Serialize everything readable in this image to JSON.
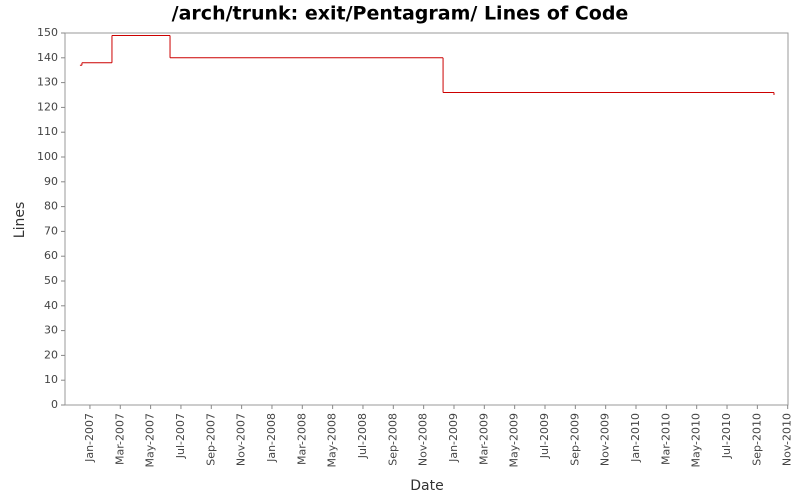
{
  "chart_data": {
    "type": "line",
    "step": "post",
    "title": "/arch/trunk: exit/Pentagram/ Lines of Code",
    "x_label": "Date",
    "y_label": "Lines",
    "x": [
      2006.945,
      2006.956,
      2007.121,
      2007.44,
      2008.94,
      2010.75,
      2010.758
    ],
    "series": [
      {
        "name": "Lines",
        "color": "#cc0000",
        "values": [
          137,
          138,
          149,
          140,
          126,
          126,
          125
        ]
      }
    ],
    "xlim": [
      2006.863,
      2010.835
    ],
    "xticks": [
      {
        "value": 2007.0,
        "label": "Jan-2007"
      },
      {
        "value": 2007.1667,
        "label": "Mar-2007"
      },
      {
        "value": 2007.3333,
        "label": "May-2007"
      },
      {
        "value": 2007.5,
        "label": "Jul-2007"
      },
      {
        "value": 2007.6667,
        "label": "Sep-2007"
      },
      {
        "value": 2007.8333,
        "label": "Nov-2007"
      },
      {
        "value": 2008.0,
        "label": "Jan-2008"
      },
      {
        "value": 2008.1667,
        "label": "Mar-2008"
      },
      {
        "value": 2008.3333,
        "label": "May-2008"
      },
      {
        "value": 2008.5,
        "label": "Jul-2008"
      },
      {
        "value": 2008.6667,
        "label": "Sep-2008"
      },
      {
        "value": 2008.8333,
        "label": "Nov-2008"
      },
      {
        "value": 2009.0,
        "label": "Jan-2009"
      },
      {
        "value": 2009.1667,
        "label": "Mar-2009"
      },
      {
        "value": 2009.3333,
        "label": "May-2009"
      },
      {
        "value": 2009.5,
        "label": "Jul-2009"
      },
      {
        "value": 2009.6667,
        "label": "Sep-2009"
      },
      {
        "value": 2009.8333,
        "label": "Nov-2009"
      },
      {
        "value": 2010.0,
        "label": "Jan-2010"
      },
      {
        "value": 2010.1667,
        "label": "Mar-2010"
      },
      {
        "value": 2010.3333,
        "label": "May-2010"
      },
      {
        "value": 2010.5,
        "label": "Jul-2010"
      },
      {
        "value": 2010.6667,
        "label": "Sep-2010"
      },
      {
        "value": 2010.8333,
        "label": "Nov-2010"
      }
    ],
    "ylim": [
      0,
      150
    ],
    "yticks": [
      0,
      10,
      20,
      30,
      40,
      50,
      60,
      70,
      80,
      90,
      100,
      110,
      120,
      130,
      140,
      150
    ],
    "grid": false
  }
}
